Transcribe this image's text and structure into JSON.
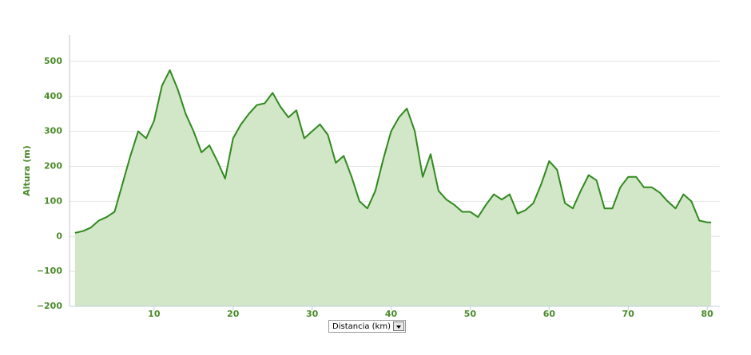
{
  "chart_data": {
    "type": "area",
    "y_label": "Altura (m)",
    "x_label": "Distancia (km)",
    "color": "#2f8a1c",
    "fill": "#d2e6c8",
    "grid": true,
    "x": [
      0,
      1,
      2,
      3,
      4,
      5,
      6,
      7,
      8,
      9,
      10,
      11,
      12,
      13,
      14,
      15,
      16,
      17,
      18,
      19,
      20,
      21,
      22,
      23,
      24,
      25,
      26,
      27,
      28,
      29,
      30,
      31,
      32,
      33,
      34,
      35,
      36,
      37,
      38,
      39,
      40,
      41,
      42,
      43,
      44,
      45,
      46,
      47,
      48,
      49,
      50,
      51,
      52,
      53,
      54,
      55,
      56,
      57,
      58,
      59,
      60,
      61,
      62,
      63,
      64,
      65,
      66,
      67,
      68,
      69,
      70,
      71,
      72,
      73,
      74,
      75,
      76,
      77,
      78,
      79,
      80,
      80.5
    ],
    "values": [
      10,
      15,
      25,
      45,
      55,
      70,
      150,
      230,
      300,
      280,
      330,
      430,
      475,
      420,
      350,
      300,
      240,
      260,
      215,
      165,
      280,
      320,
      350,
      375,
      380,
      410,
      370,
      340,
      360,
      280,
      300,
      320,
      290,
      210,
      230,
      170,
      100,
      80,
      130,
      220,
      300,
      340,
      365,
      300,
      170,
      235,
      130,
      105,
      90,
      70,
      70,
      55,
      90,
      120,
      105,
      120,
      65,
      75,
      95,
      150,
      215,
      190,
      95,
      80,
      130,
      175,
      160,
      80,
      80,
      140,
      170,
      170,
      140,
      140,
      125,
      100,
      80,
      120,
      100,
      45,
      40,
      40
    ],
    "xlim": [
      -0.7,
      81.6
    ],
    "xticks": [
      10,
      20,
      30,
      40,
      50,
      60,
      70,
      80
    ],
    "ylim": [
      -200,
      575
    ],
    "yticks": [
      {
        "value": -200,
        "label": "−200"
      },
      {
        "value": -100,
        "label": "−100"
      },
      0,
      100,
      200,
      300,
      400,
      500
    ]
  }
}
